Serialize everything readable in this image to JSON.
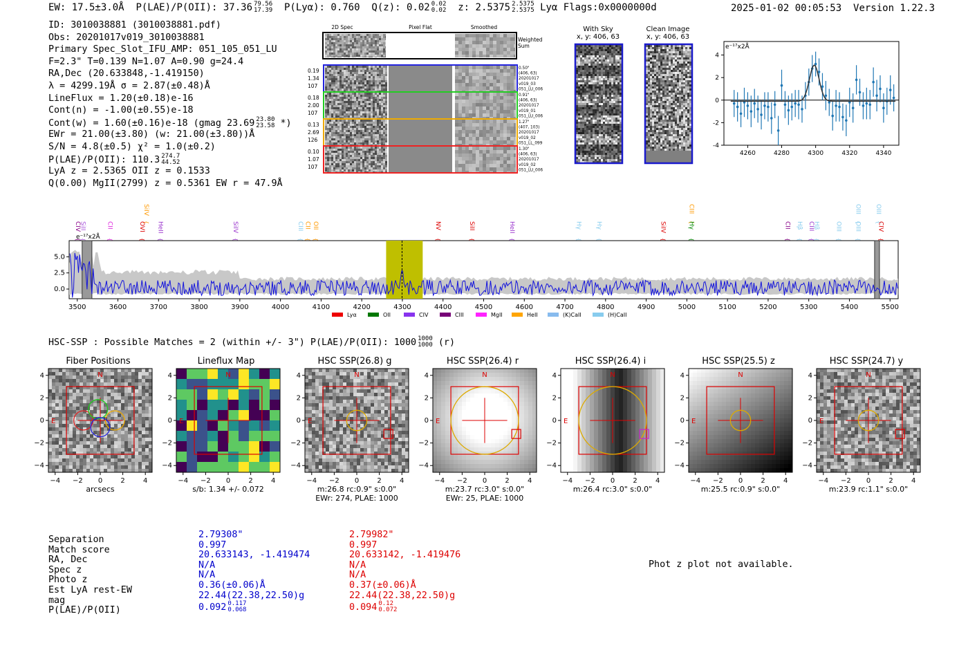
{
  "header": {
    "ew": "EW: 17.5±3.0Å",
    "plae_label": "P(LAE)/P(OII): 37.36",
    "plae_hi": "79.56",
    "plae_lo": "17.39",
    "plya": "P(Lyα): 0.760",
    "qz_label": "Q(z): 0.02",
    "qz_hi": "0.02",
    "qz_lo": "0.02",
    "z_label": "z: 2.5375",
    "z_hi": "2.5375",
    "z_lo": "2.5375",
    "line": "Lyα",
    "flags": "Flags:0x0000000d",
    "timestamp": "2025-01-02 00:05:53",
    "version": "Version 1.22.3"
  },
  "info": {
    "id": "ID: 3010038881 (3010038881.pdf)",
    "obs": "Obs: 20201017v019_3010038881",
    "primary": "Primary Spec_Slot_IFU_AMP: 051_105_051_LU",
    "fit": "F=2.3\"  T=0.139  N=1.07  A=0.90  g=24.4",
    "radec": "RA,Dec (20.633848,-1.419150)",
    "lambda": "λ = 4299.19Å  σ = 2.87(±0.48)Å",
    "lineflux": "LineFlux = 1.20(±0.18)e-16",
    "contn": "Cont(n) = -1.00(±0.55)e-18",
    "contw_label": "Cont(w) = 1.60(±0.16)e-18 (gmag 23.69",
    "contw_hi": "23.80",
    "contw_lo": "23.58",
    "contw_tail": "*)",
    "ewr": "EWr = 21.00(±3.80) (w: 21.00(±3.80))Å",
    "sn": "S/N = 4.8(±0.5)  χ² = 1.0(±0.2)",
    "plae_label": "P(LAE)/P(OII): 110.3",
    "plae_hi": "274.7",
    "plae_lo": "44.52",
    "lya": "LyA z = 2.5365  OII z = 0.1533",
    "mgii": "Q(0.00) MgII(2799) z = 0.5361  EW r = 47.9Å"
  },
  "cutouts": {
    "headers": [
      "2D Spec",
      "Pixel Flat",
      "Smoothed"
    ],
    "weighted_sum": [
      "Weighted",
      "Sum"
    ],
    "rows": [
      {
        "left": [
          "0.19",
          "1.34",
          "107"
        ],
        "right": [
          "0.50\"",
          "(406, 63)",
          "20201017",
          "v019_03",
          "051_LU_006"
        ],
        "color": "#2222dd"
      },
      {
        "left": [
          "0.18",
          "2.00",
          "107"
        ],
        "right": [
          "0.91\"",
          "(406, 63)",
          "20201017",
          "v019_01",
          "051_LU_006"
        ],
        "color": "#22cc22"
      },
      {
        "left": [
          "0.13",
          "2.69",
          "126"
        ],
        "right": [
          "1.27\"",
          "(407, 103)",
          "20201017",
          "v019_02",
          "051_LL_099"
        ],
        "color": "#eeaa00"
      },
      {
        "left": [
          "0.10",
          "1.07",
          "107"
        ],
        "right": [
          "1.30\"",
          "(406, 63)",
          "20201017",
          "v019_02",
          "051_LU_006"
        ],
        "color": "#ee2222"
      }
    ],
    "with_sky_title": "With Sky",
    "with_sky_coords": "x, y: 406, 63",
    "clean_title": "Clean Image",
    "clean_coords": "x, y: 406, 63"
  },
  "zoom_chart": {
    "units": "e⁻¹⁷x2Å"
  },
  "chart_data": [
    {
      "type": "scatter",
      "title": "",
      "units_label": "e⁻¹⁷x2Å",
      "xlim": [
        4246,
        4349
      ],
      "ylim": [
        -4,
        5.2
      ],
      "xticks": [
        4260,
        4280,
        4300,
        4320,
        4340
      ],
      "yticks": [
        -4,
        -2,
        0,
        2,
        4
      ],
      "x": [
        4252,
        4254,
        4256,
        4258,
        4260,
        4262,
        4264,
        4266,
        4268,
        4270,
        4272,
        4274,
        4276,
        4278,
        4280,
        4282,
        4284,
        4286,
        4288,
        4290,
        4292,
        4294,
        4296,
        4298,
        4300,
        4302,
        4304,
        4306,
        4308,
        4310,
        4312,
        4314,
        4316,
        4318,
        4320,
        4322,
        4324,
        4326,
        4328,
        4330,
        4332,
        4334,
        4336,
        4338,
        4340,
        4342,
        4344,
        4346
      ],
      "y": [
        -0.3,
        -0.6,
        -1.2,
        -0.2,
        -0.5,
        -1.0,
        -0.3,
        -0.8,
        -1.3,
        -0.5,
        -0.6,
        -1.6,
        -0.4,
        -2.7,
        1.3,
        -0.4,
        -0.9,
        -0.6,
        -0.3,
        -0.4,
        -0.8,
        0.4,
        1.6,
        2.8,
        3.2,
        2.5,
        1.2,
        0.4,
        -0.2,
        -1.4,
        -0.5,
        -0.6,
        -1.5,
        -1.8,
        -0.2,
        -0.7,
        1.8,
        0.7,
        -0.5,
        -0.3,
        -0.4,
        1.6,
        0.4,
        1.0,
        -0.7,
        -0.1,
        0.9,
        0.2
      ],
      "yerr": [
        1.2,
        1.3,
        1.2,
        1.3,
        1.2,
        1.4,
        1.3,
        1.2,
        1.3,
        1.2,
        1.3,
        1.4,
        1.2,
        1.3,
        1.4,
        1.2,
        1.3,
        1.2,
        1.2,
        1.3,
        1.2,
        1.2,
        1.2,
        1.2,
        1.1,
        1.2,
        1.2,
        1.3,
        1.2,
        1.3,
        1.4,
        1.3,
        1.2,
        1.4,
        1.3,
        1.3,
        1.3,
        1.2,
        1.2,
        1.4,
        1.3,
        1.3,
        1.4,
        1.2,
        1.3,
        1.2,
        1.3,
        1.2
      ],
      "fit_center": 4299.19,
      "fit_sigma": 2.87,
      "fit_amp": 3.2,
      "fit_continuum": -0.1
    },
    {
      "type": "line",
      "title": "full spectrum",
      "units_label": "e⁻¹⁷x2Å",
      "xlim": [
        3480,
        5520
      ],
      "ylim": [
        -1.5,
        7.5
      ],
      "xticks": [
        3500,
        3600,
        3700,
        3800,
        3900,
        4000,
        4100,
        4200,
        4300,
        4400,
        4500,
        4600,
        4700,
        4800,
        4900,
        5000,
        5100,
        5200,
        5300,
        5400,
        5500
      ],
      "yticks": [
        0.0,
        2.5,
        5.0
      ],
      "highlight_range": [
        4260,
        4350
      ],
      "line_center": 4299.19,
      "hatched_ranges": [
        [
          3512,
          3536
        ],
        [
          5462,
          5474
        ]
      ],
      "line_markers": [
        {
          "label": "CIV",
          "x": 3492,
          "row": 0,
          "color": "#880088"
        },
        {
          "label": "SiII",
          "x": 3505,
          "row": 0,
          "color": "#aa55dd"
        },
        {
          "label": "CII",
          "x": 3571,
          "row": 0,
          "color": "#dd22dd"
        },
        {
          "label": "SiIV",
          "x": 3660,
          "row": 1,
          "color": "#ff9900"
        },
        {
          "label": "OVI",
          "x": 3650,
          "row": 0,
          "color": "#dd0000"
        },
        {
          "label": "HeII",
          "x": 3695,
          "row": 0,
          "color": "#9933cc"
        },
        {
          "label": "SiIV",
          "x": 3880,
          "row": 0,
          "color": "#9933cc"
        },
        {
          "label": "CIII",
          "x": 4040,
          "row": 0,
          "color": "#88ccee"
        },
        {
          "label": "CII",
          "x": 4058,
          "row": 0,
          "color": "#ff9900"
        },
        {
          "label": "OII",
          "x": 4077,
          "row": 0,
          "color": "#ff9900"
        },
        {
          "label": "NV",
          "x": 4378,
          "row": 0,
          "color": "#dd0000"
        },
        {
          "label": "SiII",
          "x": 4462,
          "row": 0,
          "color": "#dd0000"
        },
        {
          "label": "HeII",
          "x": 4560,
          "row": 0,
          "color": "#9933cc"
        },
        {
          "label": "Hγ",
          "x": 4725,
          "row": 0,
          "color": "#88ccee"
        },
        {
          "label": "Hγ",
          "x": 4775,
          "row": 0,
          "color": "#88ccee"
        },
        {
          "label": "SiIV",
          "x": 4932,
          "row": 0,
          "color": "#dd0000"
        },
        {
          "label": "CIII",
          "x": 5002,
          "row": 1,
          "color": "#ff9900"
        },
        {
          "label": "Hγ",
          "x": 5002,
          "row": 0,
          "color": "#008800"
        },
        {
          "label": "CII",
          "x": 5238,
          "row": 0,
          "color": "#880088"
        },
        {
          "label": "Hβ",
          "x": 5268,
          "row": 0,
          "color": "#88ccee"
        },
        {
          "label": "CIII",
          "x": 5297,
          "row": 0,
          "color": "#9933cc"
        },
        {
          "label": "Hβ",
          "x": 5310,
          "row": 0,
          "color": "#88ccee"
        },
        {
          "label": "OIII",
          "x": 5364,
          "row": 0,
          "color": "#88ccee"
        },
        {
          "label": "OIII",
          "x": 5412,
          "row": 0,
          "color": "#88ccee"
        },
        {
          "label": "OIII",
          "x": 5412,
          "row": 1,
          "color": "#88ccee"
        },
        {
          "label": "OIII",
          "x": 5462,
          "row": 1,
          "color": "#88ccee"
        },
        {
          "label": "CIV",
          "x": 5468,
          "row": 0,
          "color": "#dd0000"
        }
      ],
      "legend": [
        {
          "label": "Lyα",
          "color": "#ee0000"
        },
        {
          "label": "OII",
          "color": "#007700"
        },
        {
          "label": "CIV",
          "color": "#8833ee"
        },
        {
          "label": "CIII",
          "color": "#770077"
        },
        {
          "label": "MgII",
          "color": "#ff22ff"
        },
        {
          "label": "HeII",
          "color": "#ffa500"
        },
        {
          "label": "(K)CaII",
          "color": "#88bbee"
        },
        {
          "label": "(H)CaII",
          "color": "#88ccee"
        }
      ]
    }
  ],
  "hsc": {
    "title_label": "HSC-SSP : Possible Matches = 2 (within +/- 3\")  P(LAE)/P(OII): 1000",
    "title_hi": "1000",
    "title_lo": "1000",
    "title_tail": "(r)",
    "compass_n": "N",
    "compass_e": "E",
    "tick_labels": [
      "−4",
      "−2",
      "0",
      "2",
      "4"
    ],
    "panels": [
      {
        "title": "Fiber Positions",
        "cap1": "arcsecs",
        "cap2": ""
      },
      {
        "title": "Lineflux Map",
        "cap1": "s/b: 1.34 +/- 0.072",
        "cap2": ""
      },
      {
        "title": "HSC SSP(26.8) g",
        "cap1": "m:26.8 rc:0.9\"  s:0.0\"",
        "cap2": "EWr: 274, PLAE: 1000"
      },
      {
        "title": "HSC SSP(26.4) r",
        "cap1": "m:23.7 rc:3.0\"  s:0.0\"",
        "cap2": "EWr: 25, PLAE: 1000"
      },
      {
        "title": "HSC SSP(26.4) i",
        "cap1": "m:26.4 rc:3.0\"  s:0.0\"",
        "cap2": ""
      },
      {
        "title": "HSC SSP(25.5) z",
        "cap1": "m:25.5 rc:0.9\"  s:0.0\"",
        "cap2": ""
      },
      {
        "title": "HSC SSP(24.7) y",
        "cap1": "m:23.9 rc:1.1\"  s:0.0\"",
        "cap2": ""
      }
    ]
  },
  "matches": {
    "labels": [
      "Separation",
      "Match score",
      "RA, Dec",
      "Spec z",
      "Photo z",
      "Est LyA rest-EW",
      "mag",
      "P(LAE)/P(OII)"
    ],
    "a": {
      "separation": "2.79308\"",
      "score": "0.997",
      "radec": "20.633143, -1.419474",
      "specz": "N/A",
      "photoz": "N/A",
      "ew": "0.36(±0.06)Å",
      "mag": "22.44(22.38,22.50)g",
      "plae": "0.092",
      "plae_hi": "0.117",
      "plae_lo": "0.068"
    },
    "b": {
      "separation": "2.79982\"",
      "score": "0.997",
      "radec": "20.633142, -1.419476",
      "specz": "N/A",
      "photoz": "N/A",
      "ew": "0.37(±0.06)Å",
      "mag": "22.44(22.38,22.50)g",
      "plae": "0.094",
      "plae_hi": "0.12",
      "plae_lo": "0.072"
    },
    "phot_z_msg": "Phot z plot not available."
  }
}
